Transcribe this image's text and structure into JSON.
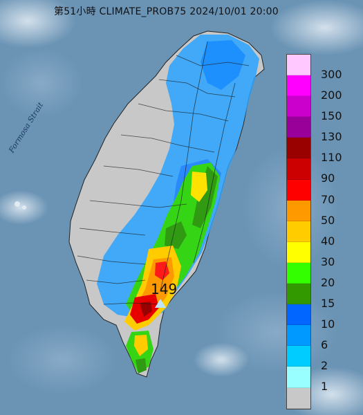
{
  "title": "第51小時  CLIMATE_PROB75 2024/10/01 20:00",
  "sea_label": "Formosa Strait",
  "max_marker": {
    "value": "149"
  },
  "legend": [
    {
      "label": "300",
      "color": "#ffc8ff"
    },
    {
      "label": "200",
      "color": "#ff00ff"
    },
    {
      "label": "150",
      "color": "#cc00cc"
    },
    {
      "label": "130",
      "color": "#990099"
    },
    {
      "label": "110",
      "color": "#990000"
    },
    {
      "label": "90",
      "color": "#cc0000"
    },
    {
      "label": "70",
      "color": "#ff0000"
    },
    {
      "label": "50",
      "color": "#ff9900"
    },
    {
      "label": "40",
      "color": "#ffcc00"
    },
    {
      "label": "30",
      "color": "#ffff00"
    },
    {
      "label": "20",
      "color": "#33ff00"
    },
    {
      "label": "15",
      "color": "#339900"
    },
    {
      "label": "10",
      "color": "#0066ff"
    },
    {
      "label": "6",
      "color": "#0099ff"
    },
    {
      "label": "2",
      "color": "#00ccff"
    },
    {
      "label": "1",
      "color": "#99ffff"
    },
    {
      "label": "",
      "color": "#c8c8c8"
    }
  ],
  "colors": {
    "sea": "#5f88a8",
    "land_low": "#c8c8c8"
  }
}
